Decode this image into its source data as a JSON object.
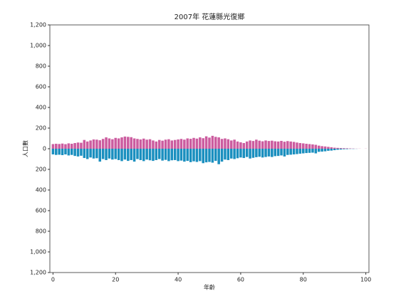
{
  "chart_data": {
    "type": "bar",
    "title": "2007年 花蓮縣光復鄉",
    "xlabel": "年齡",
    "ylabel": "人口數",
    "x": [
      0,
      1,
      2,
      3,
      4,
      5,
      6,
      7,
      8,
      9,
      10,
      11,
      12,
      13,
      14,
      15,
      16,
      17,
      18,
      19,
      20,
      21,
      22,
      23,
      24,
      25,
      26,
      27,
      28,
      29,
      30,
      31,
      32,
      33,
      34,
      35,
      36,
      37,
      38,
      39,
      40,
      41,
      42,
      43,
      44,
      45,
      46,
      47,
      48,
      49,
      50,
      51,
      52,
      53,
      54,
      55,
      56,
      57,
      58,
      59,
      60,
      61,
      62,
      63,
      64,
      65,
      66,
      67,
      68,
      69,
      70,
      71,
      72,
      73,
      74,
      75,
      76,
      77,
      78,
      79,
      80,
      81,
      82,
      83,
      84,
      85,
      86,
      87,
      88,
      89,
      90,
      91,
      92,
      93,
      94,
      95,
      96,
      97,
      98,
      99,
      100
    ],
    "series": [
      {
        "color": "#cc5c9f",
        "values": [
          45,
          48,
          46,
          50,
          44,
          52,
          48,
          55,
          60,
          58,
          85,
          70,
          80,
          90,
          88,
          82,
          95,
          110,
          100,
          92,
          105,
          100,
          110,
          118,
          115,
          112,
          100,
          95,
          90,
          98,
          88,
          92,
          80,
          70,
          85,
          78,
          88,
          92,
          80,
          85,
          90,
          95,
          88,
          100,
          96,
          105,
          98,
          110,
          102,
          120,
          108,
          125,
          115,
          110,
          95,
          100,
          92,
          80,
          88,
          70,
          62,
          55,
          70,
          80,
          75,
          88,
          78,
          72,
          80,
          75,
          78,
          72,
          70,
          76,
          68,
          74,
          70,
          66,
          60,
          55,
          52,
          48,
          45,
          42,
          38,
          30,
          25,
          22,
          18,
          14,
          10,
          8,
          6,
          5,
          4,
          3,
          2,
          1,
          1,
          0,
          1
        ]
      },
      {
        "color": "#1a8fbf",
        "values": [
          -55,
          -60,
          -58,
          -62,
          -55,
          -65,
          -60,
          -70,
          -75,
          -68,
          -90,
          -100,
          -85,
          -95,
          -92,
          -125,
          -100,
          -110,
          -95,
          -105,
          -100,
          -110,
          -120,
          -105,
          -118,
          -110,
          -125,
          -100,
          -110,
          -120,
          -105,
          -112,
          -118,
          -110,
          -100,
          -115,
          -108,
          -120,
          -112,
          -110,
          -120,
          -115,
          -125,
          -118,
          -130,
          -122,
          -128,
          -120,
          -140,
          -132,
          -128,
          -135,
          -118,
          -150,
          -125,
          -105,
          -110,
          -95,
          -100,
          -92,
          -85,
          -90,
          -80,
          -95,
          -88,
          -82,
          -78,
          -85,
          -80,
          -75,
          -80,
          -72,
          -70,
          -65,
          -75,
          -60,
          -58,
          -55,
          -52,
          -48,
          -45,
          -42,
          -40,
          -38,
          -45,
          -30,
          -28,
          -25,
          -20,
          -18,
          -14,
          -10,
          -8,
          -5,
          -4,
          -2,
          -2,
          -1,
          0,
          0,
          0
        ]
      }
    ],
    "xlim": [
      -1,
      101
    ],
    "xticks": [
      0,
      20,
      40,
      60,
      80,
      100
    ],
    "ylim": [
      -1200,
      1200
    ],
    "yticks": [
      {
        "value": -1200,
        "label": "1,200"
      },
      {
        "value": -1000,
        "label": "1,000"
      },
      {
        "value": -800,
        "label": "800"
      },
      {
        "value": -600,
        "label": "600"
      },
      {
        "value": -400,
        "label": "400"
      },
      {
        "value": -200,
        "label": "200"
      },
      0,
      200,
      400,
      600,
      800,
      {
        "value": 1000,
        "label": "1,000"
      },
      {
        "value": 1200,
        "label": "1,200"
      }
    ],
    "grid": false
  }
}
